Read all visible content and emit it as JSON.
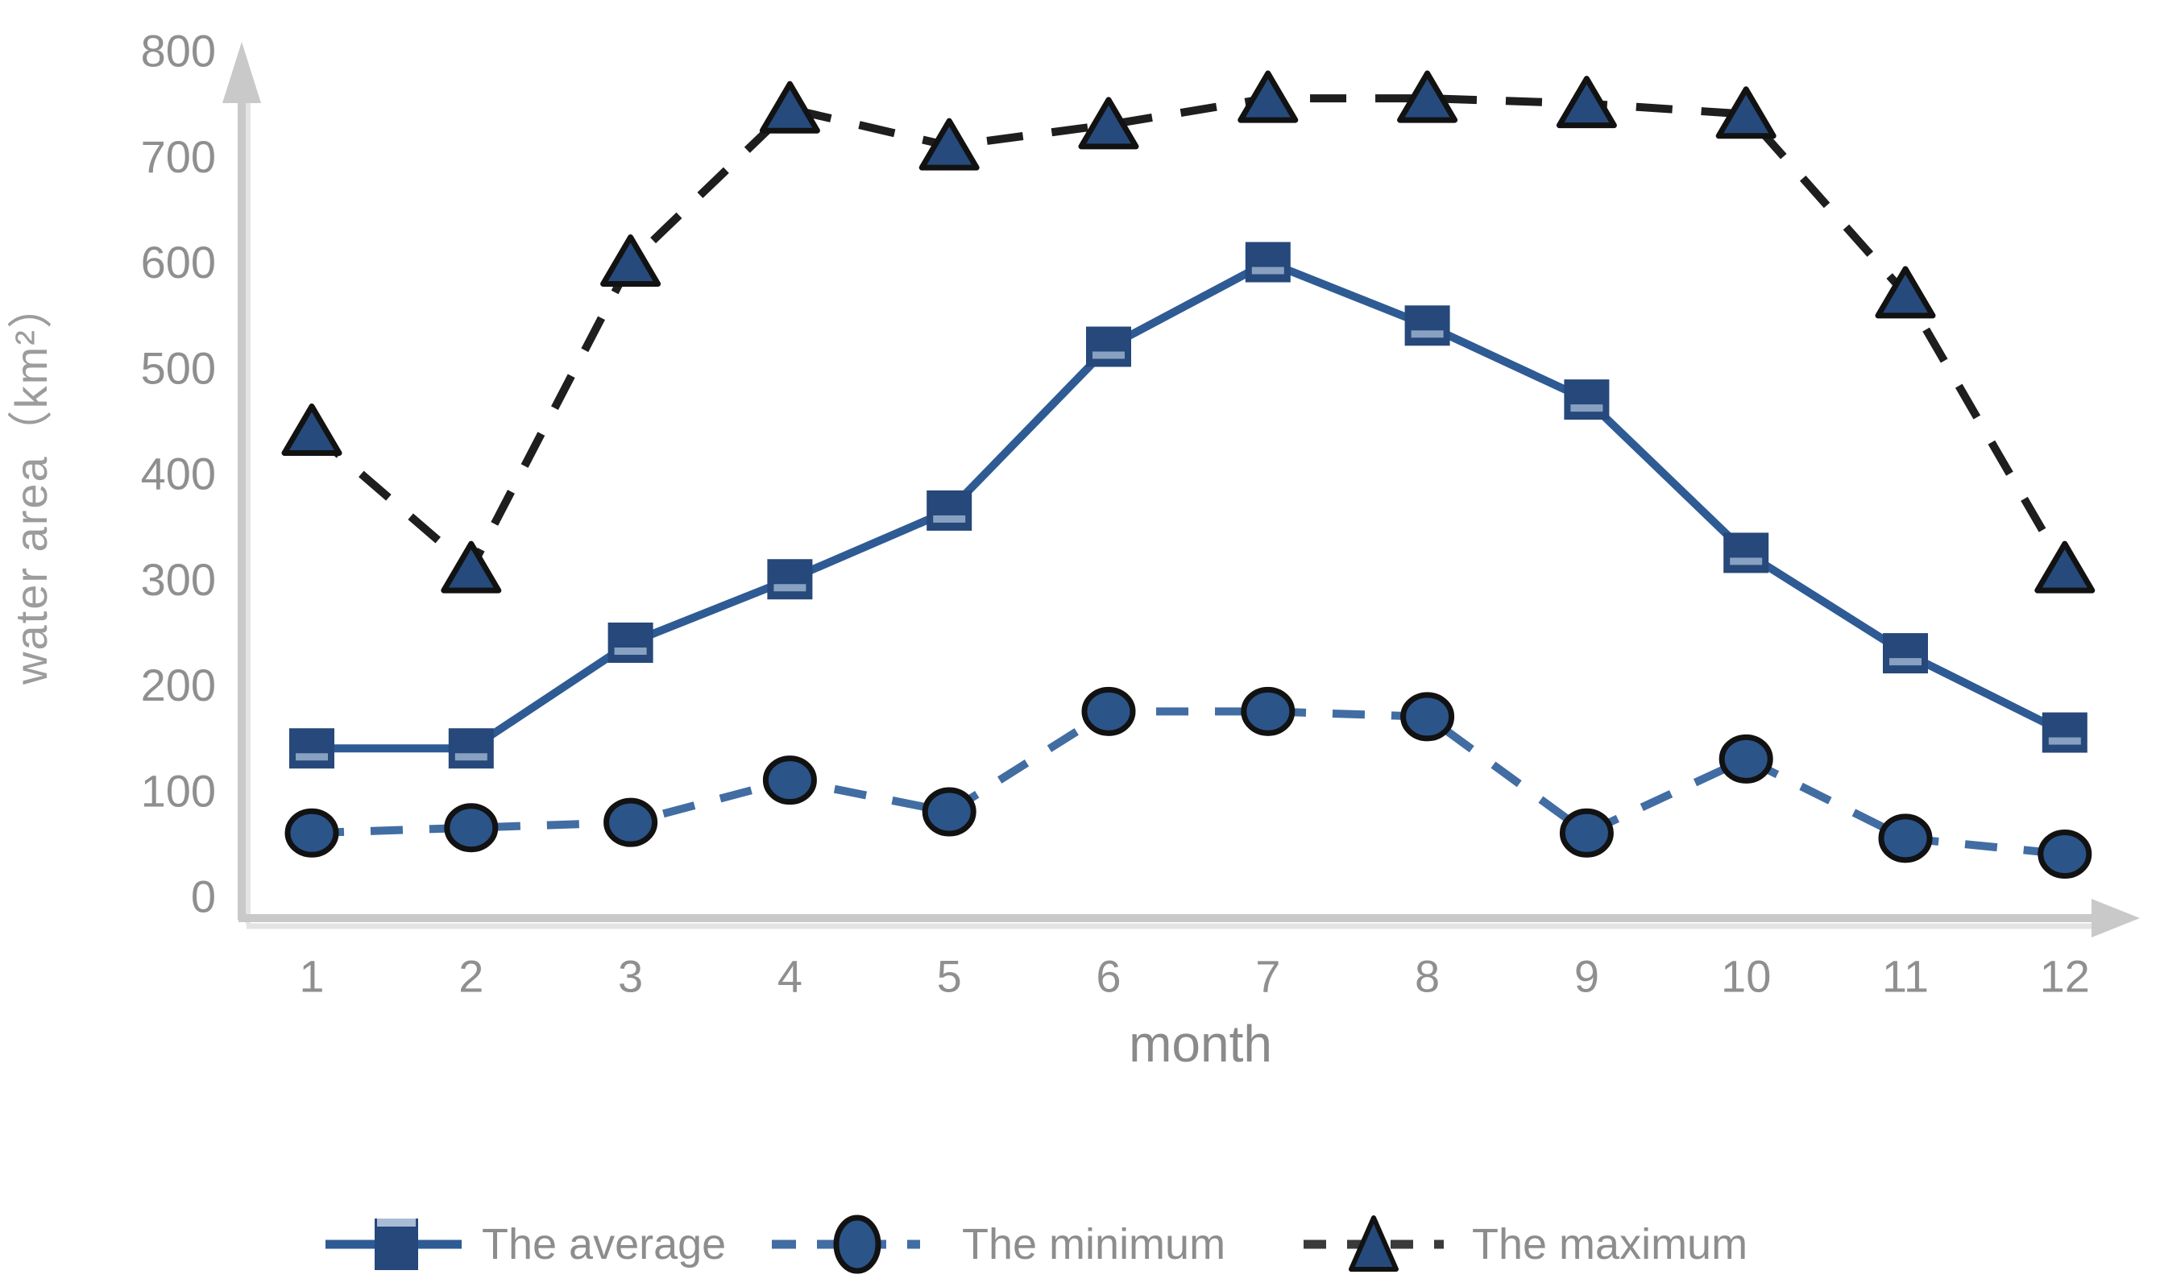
{
  "chart_data": {
    "type": "line",
    "title": "",
    "xlabel": "month",
    "ylabel": "water area（km²）",
    "x_ticks": [
      "1",
      "2",
      "3",
      "4",
      "5",
      "6",
      "7",
      "8",
      "9",
      "10",
      "11",
      "12"
    ],
    "y_ticks": [
      0,
      100,
      200,
      300,
      400,
      500,
      600,
      700,
      800
    ],
    "ylim": [
      0,
      800
    ],
    "xlim": [
      1,
      12
    ],
    "grid": false,
    "legend_position": "bottom",
    "series": [
      {
        "name": "The average",
        "marker": "square",
        "line_style": "solid",
        "line_color": "#2e5b94",
        "marker_color": "#26487a",
        "marker_edge": "none",
        "values": [
          140,
          140,
          240,
          300,
          365,
          520,
          600,
          540,
          470,
          325,
          230,
          155
        ]
      },
      {
        "name": "The minimum",
        "marker": "circle",
        "line_style": "dashed",
        "line_color": "#416da3",
        "marker_color": "#2b5489",
        "marker_edge": "#121212",
        "values": [
          60,
          65,
          70,
          110,
          80,
          175,
          175,
          170,
          60,
          130,
          55,
          40
        ]
      },
      {
        "name": "The maximum",
        "marker": "triangle",
        "line_style": "dashed",
        "line_color": "#1e1e1e",
        "marker_color": "#264a7b",
        "marker_edge": "#121212",
        "values": [
          440,
          310,
          600,
          745,
          710,
          730,
          755,
          755,
          750,
          740,
          570,
          310
        ]
      }
    ]
  },
  "style": {
    "axis_color": "#c9c9c9",
    "axis_shadow_color": "#e4e4e4",
    "tick_label_color": "#8f8f8f",
    "x_title_color": "#8a8a8a",
    "y_title_color": "#9c9c9c",
    "legend_text_color": "#8d8d8d",
    "legend_dash_color_max": "#3a3a3a"
  }
}
